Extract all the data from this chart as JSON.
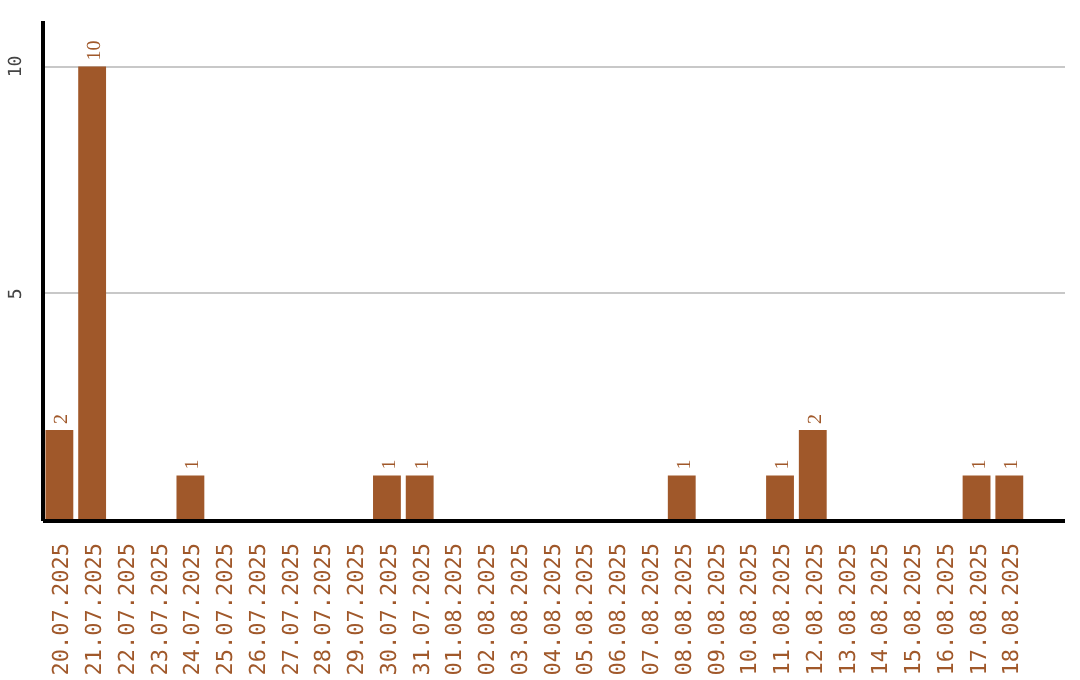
{
  "chart_data": {
    "type": "bar",
    "categories": [
      "20.07.2025",
      "21.07.2025",
      "22.07.2025",
      "23.07.2025",
      "24.07.2025",
      "25.07.2025",
      "26.07.2025",
      "27.07.2025",
      "28.07.2025",
      "29.07.2025",
      "30.07.2025",
      "31.07.2025",
      "01.08.2025",
      "02.08.2025",
      "03.08.2025",
      "04.08.2025",
      "05.08.2025",
      "06.08.2025",
      "07.08.2025",
      "08.08.2025",
      "09.08.2025",
      "10.08.2025",
      "11.08.2025",
      "12.08.2025",
      "13.08.2025",
      "14.08.2025",
      "15.08.2025",
      "16.08.2025",
      "17.08.2025",
      "18.08.2025"
    ],
    "values": [
      2,
      10,
      0,
      0,
      1,
      0,
      0,
      0,
      0,
      0,
      1,
      1,
      0,
      0,
      0,
      0,
      0,
      0,
      0,
      1,
      0,
      0,
      1,
      2,
      0,
      0,
      0,
      0,
      1,
      1
    ],
    "value_labels": [
      "2",
      "10",
      null,
      null,
      "1",
      null,
      null,
      null,
      null,
      null,
      "1",
      "1",
      null,
      null,
      null,
      null,
      null,
      null,
      null,
      "1",
      null,
      null,
      "1",
      "2",
      null,
      null,
      null,
      null,
      "1",
      "1"
    ],
    "color": "#a0582a",
    "ylim": [
      0,
      11
    ],
    "yticks": [
      5,
      10
    ],
    "grid": "y"
  }
}
